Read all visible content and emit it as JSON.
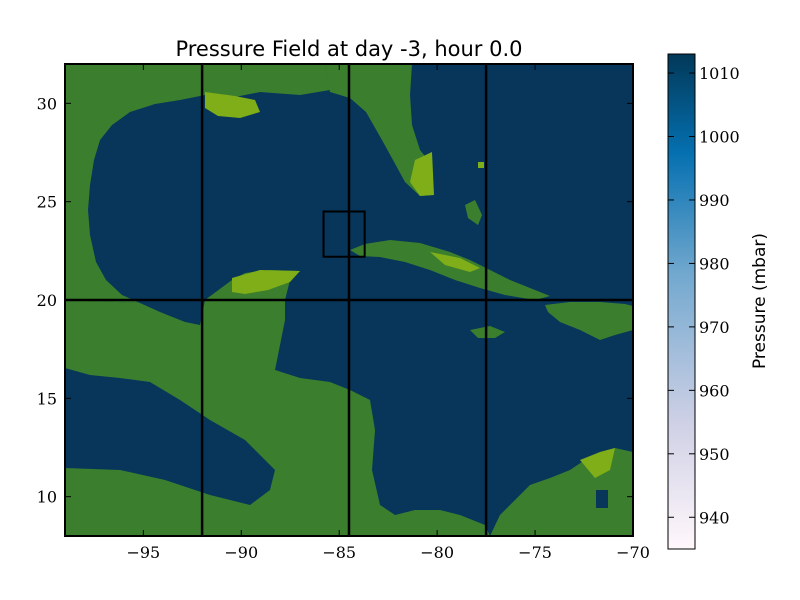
{
  "chart_data": {
    "type": "heatmap",
    "title": "Pressure Field at day -3, hour 0.0",
    "xlim": [
      -99,
      -70
    ],
    "ylim": [
      8,
      32
    ],
    "x_ticks": [
      -95,
      -90,
      -85,
      -80,
      -75,
      -70
    ],
    "x_tick_labels": [
      "−95",
      "−90",
      "−85",
      "−80",
      "−75",
      "−70"
    ],
    "y_ticks": [
      10,
      15,
      20,
      25,
      30
    ],
    "y_tick_labels": [
      "10",
      "15",
      "20",
      "25",
      "30"
    ],
    "grid_lines": {
      "lon": [
        -92,
        -84.5,
        -77.5
      ],
      "lat": [
        20
      ]
    },
    "highlight_box": {
      "lon": [
        -85.8,
        -83.7
      ],
      "lat": [
        22.2,
        24.5
      ]
    },
    "field": {
      "ocean_pressure_mbar": 1013,
      "ocean_color": "#08365a",
      "land_color": "#3b7f2e",
      "land_highlight_color": "#7fae18"
    },
    "colorbar": {
      "label": "Pressure (mbar)",
      "range": [
        935,
        1013
      ],
      "ticks": [
        940,
        950,
        960,
        970,
        980,
        990,
        1000,
        1010
      ],
      "tick_labels": [
        "940",
        "950",
        "960",
        "970",
        "980",
        "990",
        "1000",
        "1010"
      ],
      "colors": [
        "#fff7fb",
        "#d0d1e6",
        "#74a9cf",
        "#0570b0",
        "#023858"
      ]
    }
  }
}
